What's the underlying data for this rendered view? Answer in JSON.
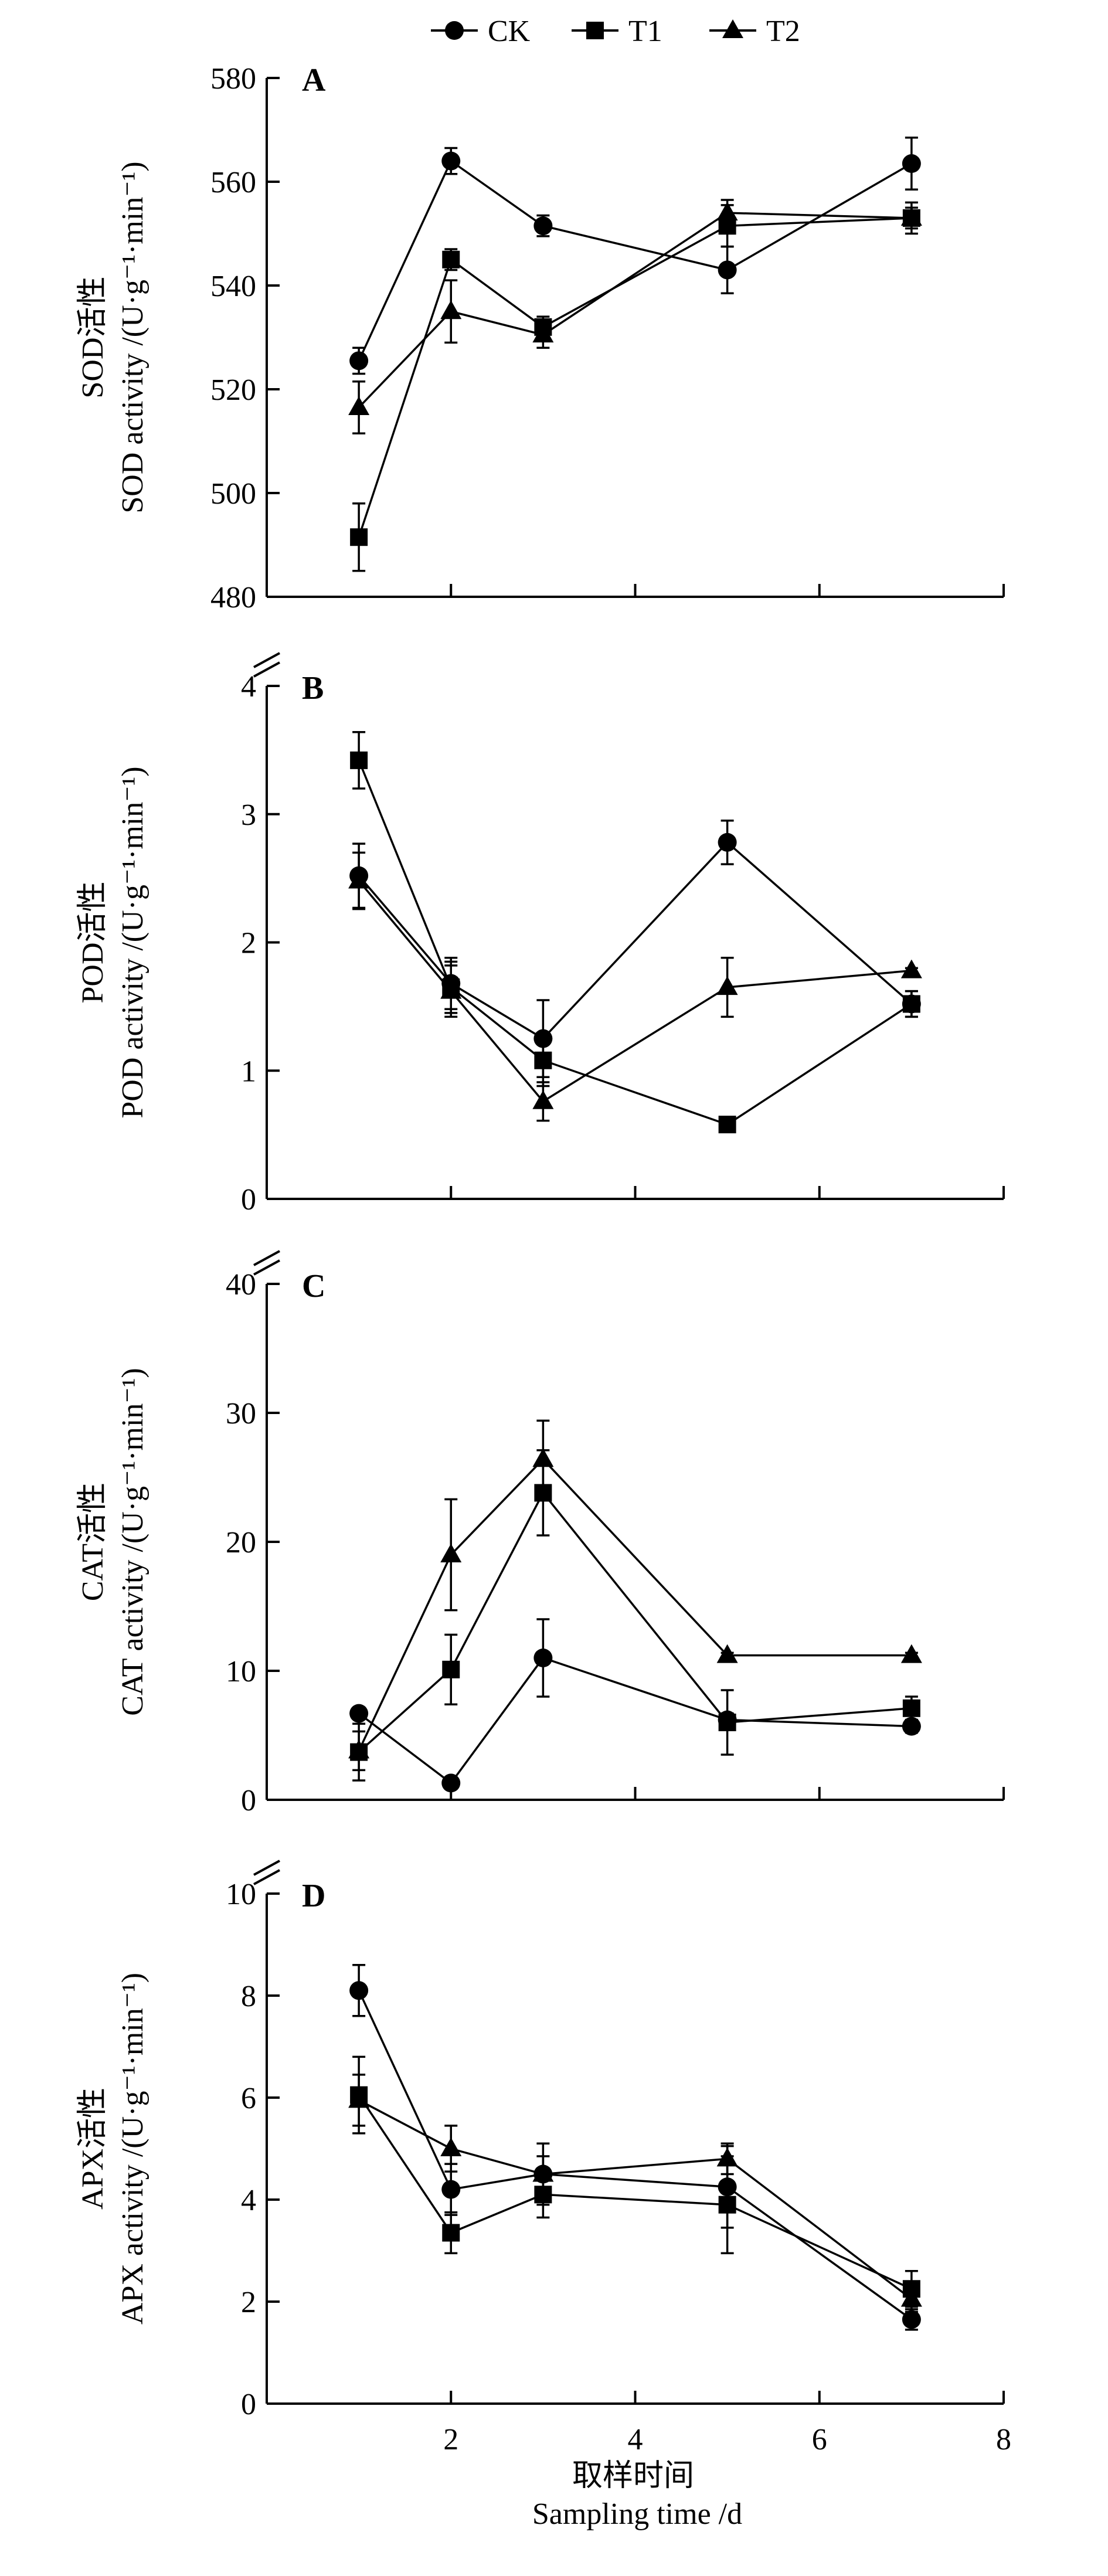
{
  "legend": {
    "items": [
      {
        "label": "CK",
        "marker": "circle"
      },
      {
        "label": "T1",
        "marker": "square"
      },
      {
        "label": "T2",
        "marker": "triangle"
      }
    ]
  },
  "colors": {
    "ink": "#000000",
    "background": "#ffffff"
  },
  "chart_data": [
    {
      "type": "line",
      "panel": "A",
      "ylabel_cn": "SOD活性",
      "ylabel_en": "SOD activity /(U·g⁻¹·min⁻¹)",
      "ylim": [
        480,
        580
      ],
      "yticks": [
        480,
        500,
        520,
        540,
        560,
        580
      ],
      "ytick_labels": [
        "480",
        "500",
        "520",
        "540",
        "560",
        "580"
      ],
      "x": [
        1,
        2,
        3,
        5,
        7
      ],
      "series": [
        {
          "name": "CK",
          "marker": "circle",
          "values": [
            525.5,
            564,
            551.5,
            543,
            563.5
          ],
          "errors": [
            2.5,
            2.5,
            2,
            4.5,
            5
          ]
        },
        {
          "name": "T1",
          "marker": "square",
          "values": [
            491.5,
            545,
            532,
            551.5,
            553
          ],
          "errors": [
            6.5,
            2,
            2,
            4,
            3
          ]
        },
        {
          "name": "T2",
          "marker": "triangle",
          "values": [
            516.5,
            535,
            530.5,
            554,
            553
          ],
          "errors": [
            5,
            6,
            2.5,
            2.5,
            2
          ]
        }
      ]
    },
    {
      "type": "line",
      "panel": "B",
      "ylabel_cn": "POD活性",
      "ylabel_en": "POD activity /(U·g⁻¹·min⁻¹)",
      "ylim": [
        0,
        4
      ],
      "yticks": [
        0,
        1,
        2,
        3,
        4
      ],
      "ytick_labels": [
        "0",
        "1",
        "2",
        "3",
        "4"
      ],
      "x": [
        1,
        2,
        3,
        5,
        7
      ],
      "series": [
        {
          "name": "CK",
          "marker": "circle",
          "values": [
            2.52,
            1.68,
            1.25,
            2.78,
            1.52
          ],
          "errors": [
            0.25,
            0.2,
            0.3,
            0.17,
            0.1
          ]
        },
        {
          "name": "T1",
          "marker": "square",
          "values": [
            3.42,
            1.65,
            1.08,
            0.58,
            1.52
          ],
          "errors": [
            0.22,
            0.2,
            0.2,
            0.02,
            0.1
          ]
        },
        {
          "name": "T2",
          "marker": "triangle",
          "values": [
            2.48,
            1.62,
            0.76,
            1.65,
            1.78
          ],
          "errors": [
            0.22,
            0.2,
            0.15,
            0.23,
            0.02
          ]
        }
      ]
    },
    {
      "type": "line",
      "panel": "C",
      "ylabel_cn": "CAT活性",
      "ylabel_en": "CAT activity /(U·g⁻¹·min⁻¹)",
      "ylim": [
        0,
        40
      ],
      "yticks": [
        0,
        10,
        20,
        30,
        40
      ],
      "ytick_labels": [
        "0",
        "10",
        "20",
        "30",
        "40"
      ],
      "x": [
        1,
        2,
        3,
        5,
        7
      ],
      "series": [
        {
          "name": "CK",
          "marker": "circle",
          "values": [
            6.7,
            1.3,
            11,
            6.2,
            5.7
          ],
          "errors": [
            0.3,
            0.3,
            3,
            0.5,
            0.5
          ]
        },
        {
          "name": "T1",
          "marker": "square",
          "values": [
            3.7,
            10.1,
            23.8,
            6.0,
            7.1
          ],
          "errors": [
            2.2,
            2.7,
            3.3,
            2.5,
            0.9
          ]
        },
        {
          "name": "T2",
          "marker": "triangle",
          "values": [
            3.8,
            19.0,
            26.4,
            11.2,
            11.2
          ],
          "errors": [
            1.5,
            4.3,
            3.0,
            0.2,
            0.2
          ]
        }
      ]
    },
    {
      "type": "line",
      "panel": "D",
      "ylabel_cn": "APX活性",
      "ylabel_en": "APX activity /(U·g⁻¹·min⁻¹)",
      "ylim": [
        0,
        10
      ],
      "yticks": [
        0,
        2,
        4,
        6,
        8,
        10
      ],
      "ytick_labels": [
        "0",
        "2",
        "4",
        "6",
        "8",
        "10"
      ],
      "x": [
        1,
        2,
        3,
        5,
        7
      ],
      "series": [
        {
          "name": "CK",
          "marker": "circle",
          "values": [
            8.1,
            4.2,
            4.5,
            4.25,
            1.65
          ],
          "errors": [
            0.5,
            0.5,
            0.6,
            0.8,
            0.2
          ]
        },
        {
          "name": "T1",
          "marker": "square",
          "values": [
            6.05,
            3.35,
            4.1,
            3.9,
            2.25
          ],
          "errors": [
            0.75,
            0.4,
            0.45,
            0.95,
            0.35
          ]
        },
        {
          "name": "T2",
          "marker": "triangle",
          "values": [
            5.95,
            5.0,
            4.5,
            4.8,
            2.05
          ],
          "errors": [
            0.5,
            0.45,
            0.35,
            0.3,
            0.25
          ]
        }
      ]
    }
  ],
  "x_axis": {
    "xlim": [
      0,
      8
    ],
    "xticks": [
      2,
      4,
      6,
      8
    ],
    "xtick_labels": [
      "2",
      "4",
      "6",
      "8"
    ],
    "xlabel_cn": "取样时间",
    "xlabel_en": "Sampling time /d"
  }
}
